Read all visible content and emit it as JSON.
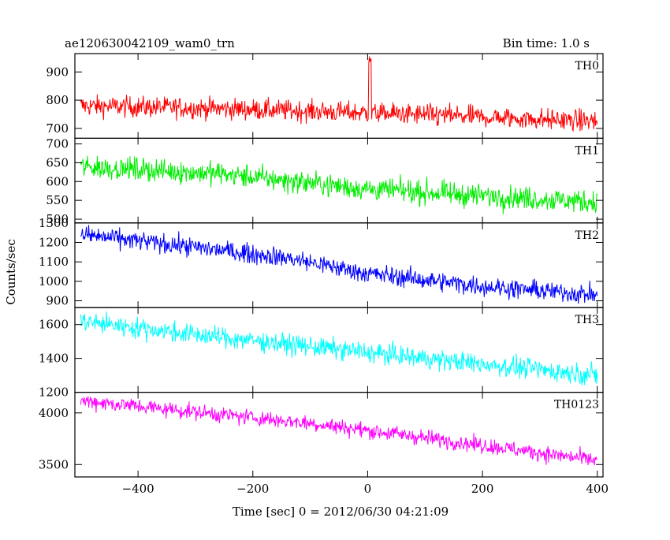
{
  "header": {
    "title": "ae120630042109_wam0_trn",
    "bin_time": "Bin time: 1.0 s"
  },
  "chart_data": {
    "type": "line",
    "xlabel": "Time [sec] 0 = 2012/06/30 04:21:09",
    "ylabel": "Counts/sec",
    "xlim": [
      -510,
      410
    ],
    "x_ticks": [
      -400,
      -200,
      0,
      200,
      400
    ],
    "x_tick_labels": [
      "−400",
      "−200",
      "0",
      "200",
      "400"
    ],
    "grid": false,
    "panels": [
      {
        "name": "TH0",
        "color": "#ff0000",
        "ylim": [
          665,
          965
        ],
        "y_ticks": [
          700,
          800,
          900
        ],
        "y_tick_labels": [
          "700",
          "800",
          "900"
        ],
        "trend": [
          [
            -500,
            780
          ],
          [
            -250,
            770
          ],
          [
            0,
            755
          ],
          [
            400,
            725
          ]
        ],
        "noise": 34,
        "spike": {
          "x": [
            2,
            6
          ],
          "peak": 965
        }
      },
      {
        "name": "TH1",
        "color": "#00ee00",
        "ylim": [
          490,
          715
        ],
        "y_ticks": [
          500,
          550,
          600,
          650,
          700
        ],
        "y_tick_labels": [
          "500",
          "550",
          "600",
          "650",
          "700"
        ],
        "trend": [
          [
            -500,
            640
          ],
          [
            -250,
            620
          ],
          [
            0,
            580
          ],
          [
            400,
            545
          ]
        ],
        "noise": 28
      },
      {
        "name": "TH2",
        "color": "#0000ff",
        "ylim": [
          865,
          1300
        ],
        "y_ticks": [
          900,
          1000,
          1100,
          1200,
          1300
        ],
        "y_tick_labels": [
          "900",
          "1000",
          "1100",
          "1200",
          "1300"
        ],
        "trend": [
          [
            -500,
            1240
          ],
          [
            -300,
            1175
          ],
          [
            -140,
            1120
          ],
          [
            0,
            1040
          ],
          [
            200,
            975
          ],
          [
            400,
            930
          ]
        ],
        "noise": 45
      },
      {
        "name": "TH3",
        "color": "#00ffff",
        "ylim": [
          1200,
          1700
        ],
        "y_ticks": [
          1200,
          1400,
          1600
        ],
        "y_tick_labels": [
          "1200",
          "1400",
          "1600"
        ],
        "trend": [
          [
            -500,
            1620
          ],
          [
            -300,
            1540
          ],
          [
            -100,
            1470
          ],
          [
            100,
            1400
          ],
          [
            400,
            1300
          ]
        ],
        "noise": 55
      },
      {
        "name": "TH0123",
        "color": "#ff00ff",
        "ylim": [
          3380,
          4200
        ],
        "y_ticks": [
          3500,
          4000
        ],
        "y_tick_labels": [
          "3500",
          "4000"
        ],
        "trend": [
          [
            -500,
            4120
          ],
          [
            -300,
            4010
          ],
          [
            -100,
            3900
          ],
          [
            100,
            3760
          ],
          [
            400,
            3540
          ]
        ],
        "noise": 70
      }
    ]
  }
}
